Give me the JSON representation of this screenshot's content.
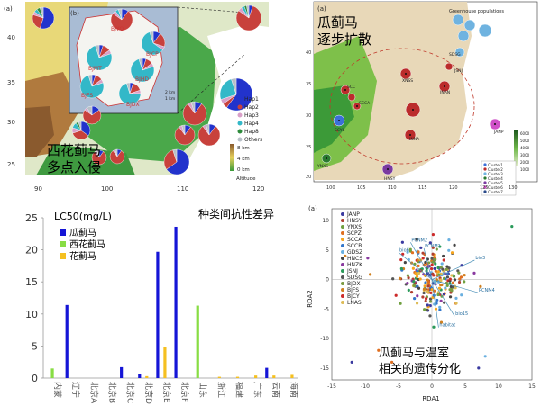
{
  "colors": {
    "hap1": "#2233cc",
    "hap2": "#c8413c",
    "hap3": "#d9a0c8",
    "hap4": "#33b8c8",
    "hap8": "#2e8b3c",
    "others": "#b8c0c8",
    "bar_blue": "#1515d6",
    "bar_green": "#88dd44",
    "bar_yellow": "#f5c020",
    "map_green": "#3a9a3a",
    "map_yellow": "#e6cf5a",
    "map_brown": "#a36a3a",
    "sea": "#ffffff"
  },
  "panel_a": {
    "label": "(a)",
    "inset_label": "(b)",
    "y_ticks": [
      "40",
      "35",
      "30",
      "25"
    ],
    "x_ticks": [
      "90",
      "100",
      "110",
      "120"
    ],
    "inset_names": [
      "BJYQ",
      "BJCP",
      "BJMT",
      "BJHD",
      "BJFS",
      "BJDX"
    ],
    "scale_labels": [
      "2 km",
      "1 km"
    ],
    "legend": [
      {
        "key": "hap1",
        "label": "Hap1"
      },
      {
        "key": "hap2",
        "label": "Hap2"
      },
      {
        "key": "hap3",
        "label": "Hap3"
      },
      {
        "key": "hap4",
        "label": "Hap4"
      },
      {
        "key": "hap8",
        "label": "Hap8"
      },
      {
        "key": "others",
        "label": "Others"
      }
    ],
    "alt_labels": [
      "8 km",
      "4 km",
      "0 km"
    ],
    "alt_title": "Altitude",
    "caption_line1": "西花蓟马",
    "caption_line2": "多点入侵"
  },
  "panel_b": {
    "label": "(a)",
    "title_line1": "瓜蓟马",
    "title_line2": "逐步扩散",
    "greenhouse_label": "Greenhouse populations",
    "x_ticks": [
      "100",
      "105",
      "110",
      "115",
      "120",
      "125",
      "130"
    ],
    "y_ticks": [
      "40",
      "35",
      "30",
      "25",
      "20"
    ],
    "site_labels": [
      "SCC",
      "SCCA",
      "SCYL",
      "XNSS",
      "JNAN",
      "JSNJ",
      "HNNA",
      "JANP",
      "HNSY",
      "YNXS",
      "SDSG"
    ],
    "legend": [
      "Cluster1",
      "Cluster2",
      "Cluster3",
      "Cluster4",
      "Cluster5",
      "Cluster6",
      "Cluster7"
    ],
    "alt_labels": [
      "6000",
      "5000",
      "4000",
      "3000",
      "2000",
      "1000"
    ]
  },
  "panel_c": {
    "unit": "LC50(mg/L)",
    "title": "种类间抗性差异",
    "legend": [
      {
        "key": "bar_blue",
        "label": "瓜蓟马"
      },
      {
        "key": "bar_green",
        "label": "西花蓟马"
      },
      {
        "key": "bar_yellow",
        "label": "花蓟马"
      }
    ]
  },
  "panel_d": {
    "label": "(a)",
    "legend": [
      "JANP",
      "HNSY",
      "YNXS",
      "SCPZ",
      "SCCA",
      "SCCB",
      "GDSZ",
      "HNCS",
      "HNZK",
      "JSNJ",
      "SDSG",
      "BJDX",
      "BJFS",
      "BJCY",
      "LNAS"
    ],
    "legend_colors": [
      "#3a3aa0",
      "#b04030",
      "#70a040",
      "#e06f20",
      "#f7a51e",
      "#3377cc",
      "#6ab0e0",
      "#444444",
      "#8a3aa0",
      "#2a9a5a",
      "#555555",
      "#7a9a40",
      "#d08020",
      "#cc2a2a",
      "#ddbb55"
    ],
    "arrow_labels": [
      "PCNM2",
      "bio6",
      "PCNM1",
      "bio3",
      "PCNM4",
      "bio15",
      "habitat"
    ],
    "xlabel": "RDA1",
    "ylabel": "RDA2",
    "caption_line1": "瓜蓟马与温室",
    "caption_line2": "相关的遗传分化"
  },
  "chart_data": [
    {
      "type": "bar",
      "title": "种类间抗性差异",
      "ylabel": "LC50(mg/L)",
      "ylim": [
        0,
        25
      ],
      "y_ticks": [
        0,
        5,
        10,
        15,
        20,
        25
      ],
      "categories": [
        "内蒙",
        "辽宁",
        "北京A",
        "北京B",
        "北京C",
        "北京D",
        "北京E",
        "北京F",
        "山东",
        "浙江",
        "福建",
        "广东",
        "云南",
        "海南"
      ],
      "series": [
        {
          "name": "瓜蓟马",
          "color": "#1515d6",
          "values": [
            0,
            11.4,
            0,
            0,
            1.7,
            0.6,
            19.7,
            23.6,
            0,
            0,
            0,
            0,
            1.6,
            0
          ]
        },
        {
          "name": "西花蓟马",
          "color": "#88dd44",
          "values": [
            1.5,
            0,
            0,
            0,
            0,
            0,
            0,
            0,
            11.3,
            0,
            0,
            0,
            0,
            0
          ]
        },
        {
          "name": "花蓟马",
          "color": "#f5c020",
          "values": [
            0,
            0,
            0,
            0,
            0,
            0.3,
            4.9,
            0,
            0,
            0.2,
            0.2,
            0.4,
            0.4,
            0.5
          ]
        }
      ]
    },
    {
      "type": "scatter",
      "xlabel": "RDA1",
      "ylabel": "RDA2",
      "xlim": [
        -15,
        15
      ],
      "ylim": [
        -17,
        12
      ],
      "x_ticks": [
        -15,
        -10,
        -5,
        0,
        5,
        10,
        15
      ],
      "y_ticks": [
        -15,
        -10,
        -5,
        0,
        5,
        10
      ],
      "arrows": [
        {
          "label": "PCNM2",
          "x": -3.2,
          "y": 6.3
        },
        {
          "label": "bio6",
          "x": -5.0,
          "y": 4.6
        },
        {
          "label": "PCNM1",
          "x": -1.2,
          "y": 5.3
        },
        {
          "label": "bio3",
          "x": 6.4,
          "y": 3.3
        },
        {
          "label": "PCNM4",
          "x": 6.9,
          "y": -2.2
        },
        {
          "label": "bio15",
          "x": 3.4,
          "y": -6.2
        },
        {
          "label": "habitat",
          "x": 1.0,
          "y": -8.1
        }
      ]
    }
  ]
}
